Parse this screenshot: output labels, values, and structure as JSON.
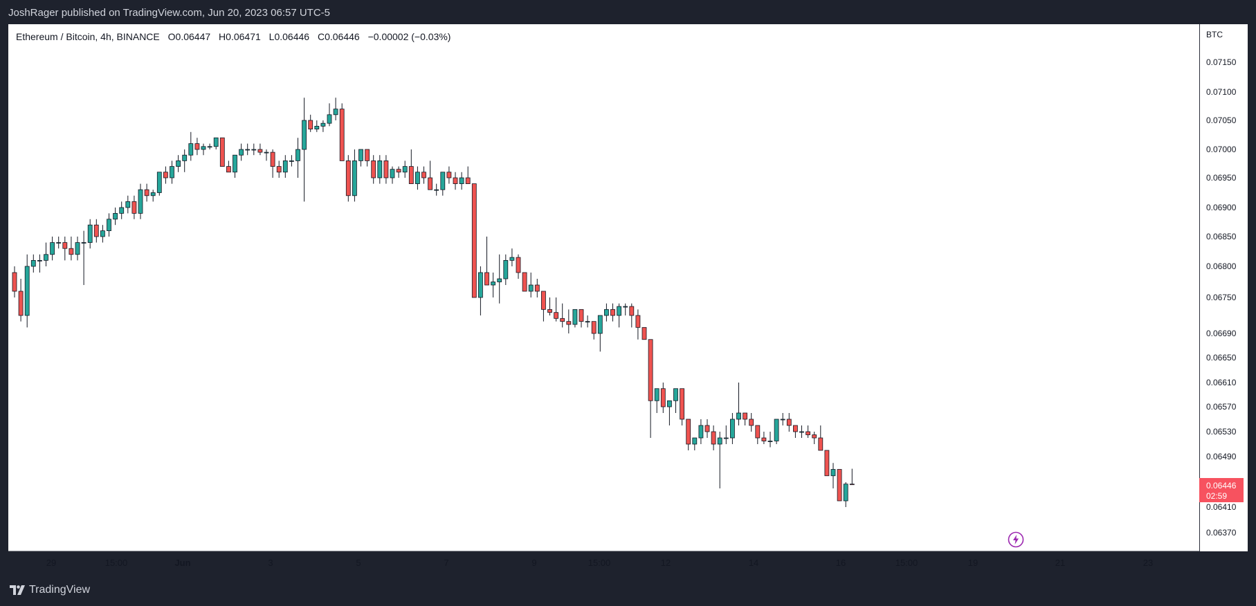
{
  "header": {
    "publisher": "JoshRager published on TradingView.com, Jun 20, 2023 06:57 UTC-5"
  },
  "legend": {
    "symbol": "Ethereum / Bitcoin, 4h, BINANCE",
    "open_label": "O",
    "open": "0.06447",
    "high_label": "H",
    "high": "0.06471",
    "low_label": "L",
    "low": "0.06446",
    "close_label": "C",
    "close": "0.06446",
    "change": "−0.00002 (−0.03%)"
  },
  "price_axis": {
    "currency": "BTC",
    "current_price": "0.06446",
    "countdown": "02:59"
  },
  "footer": {
    "brand": "TradingView"
  },
  "colors": {
    "up": "#26a69a",
    "down": "#ef5350",
    "current": "#f7525f",
    "badge": "#9c27b0"
  },
  "icons": {
    "logo": "tradingview-logo-icon",
    "flash": "lightning-icon"
  },
  "chart_data": {
    "type": "candlestick",
    "timeframe": "4h",
    "y_ticks": [
      0.0715,
      0.071,
      0.0705,
      0.07,
      0.0695,
      0.069,
      0.0685,
      0.068,
      0.0675,
      0.0669,
      0.0665,
      0.0661,
      0.0657,
      0.0653,
      0.0649,
      0.0645,
      0.0641,
      0.0637
    ],
    "y_tick_labels": [
      "0.07150",
      "0.07100",
      "0.07050",
      "0.07000",
      "0.06950",
      "0.06900",
      "0.06850",
      "0.06800",
      "0.06750",
      "0.06690",
      "0.06650",
      "0.06610",
      "0.06570",
      "0.06530",
      "0.06490",
      "",
      "0.06410",
      "0.06370"
    ],
    "x_tick_labels": [
      {
        "label": "29",
        "bold": false
      },
      {
        "label": "15:00",
        "bold": false
      },
      {
        "label": "Jun",
        "bold": true
      },
      {
        "label": "3",
        "bold": false
      },
      {
        "label": "5",
        "bold": false
      },
      {
        "label": "7",
        "bold": false
      },
      {
        "label": "9",
        "bold": false
      },
      {
        "label": "15:00",
        "bold": false
      },
      {
        "label": "12",
        "bold": false
      },
      {
        "label": "14",
        "bold": false
      },
      {
        "label": "16",
        "bold": false
      },
      {
        "label": "15:00",
        "bold": false
      },
      {
        "label": "19",
        "bold": false
      },
      {
        "label": "21",
        "bold": false
      },
      {
        "label": "23",
        "bold": false
      }
    ],
    "candles": [
      [
        0.0679,
        0.068,
        0.0675,
        0.0676
      ],
      [
        0.0676,
        0.0678,
        0.0671,
        0.0672
      ],
      [
        0.0672,
        0.0682,
        0.067,
        0.068
      ],
      [
        0.068,
        0.0682,
        0.0679,
        0.0681
      ],
      [
        0.0681,
        0.0682,
        0.0679,
        0.0681
      ],
      [
        0.0681,
        0.0684,
        0.068,
        0.0682
      ],
      [
        0.0682,
        0.0685,
        0.0681,
        0.0684
      ],
      [
        0.0684,
        0.0685,
        0.0683,
        0.0684
      ],
      [
        0.0684,
        0.0685,
        0.0681,
        0.0683
      ],
      [
        0.0683,
        0.0685,
        0.0681,
        0.0682
      ],
      [
        0.0682,
        0.0685,
        0.0681,
        0.0684
      ],
      [
        0.0684,
        0.0686,
        0.0677,
        0.0684
      ],
      [
        0.0684,
        0.0688,
        0.0683,
        0.0687
      ],
      [
        0.0687,
        0.0688,
        0.0684,
        0.0685
      ],
      [
        0.0685,
        0.0687,
        0.0684,
        0.0686
      ],
      [
        0.0686,
        0.0689,
        0.0685,
        0.0688
      ],
      [
        0.0688,
        0.069,
        0.0687,
        0.0689
      ],
      [
        0.0689,
        0.0691,
        0.0688,
        0.069
      ],
      [
        0.069,
        0.0692,
        0.0689,
        0.0691
      ],
      [
        0.0691,
        0.0692,
        0.0688,
        0.0689
      ],
      [
        0.0689,
        0.0694,
        0.0688,
        0.0693
      ],
      [
        0.0693,
        0.0694,
        0.0691,
        0.0692
      ],
      [
        0.0692,
        0.0693,
        0.0691,
        0.06925
      ],
      [
        0.06925,
        0.0696,
        0.0692,
        0.0696
      ],
      [
        0.0696,
        0.0697,
        0.0694,
        0.0695
      ],
      [
        0.0695,
        0.0698,
        0.0694,
        0.0697
      ],
      [
        0.0697,
        0.0699,
        0.0696,
        0.0698
      ],
      [
        0.0698,
        0.07,
        0.0696,
        0.0699
      ],
      [
        0.0699,
        0.0703,
        0.0698,
        0.0701
      ],
      [
        0.0701,
        0.0702,
        0.0699,
        0.07
      ],
      [
        0.07,
        0.0701,
        0.0699,
        0.07005
      ],
      [
        0.07005,
        0.0701,
        0.07,
        0.07005
      ],
      [
        0.07005,
        0.0702,
        0.07,
        0.0702
      ],
      [
        0.0702,
        0.0702,
        0.0697,
        0.0697
      ],
      [
        0.0697,
        0.0698,
        0.0696,
        0.0696
      ],
      [
        0.0696,
        0.0699,
        0.0695,
        0.0699
      ],
      [
        0.0699,
        0.0701,
        0.0698,
        0.07
      ],
      [
        0.07,
        0.0701,
        0.0699,
        0.07
      ],
      [
        0.07,
        0.0701,
        0.0699,
        0.07
      ],
      [
        0.07,
        0.0701,
        0.0699,
        0.06995
      ],
      [
        0.06995,
        0.07,
        0.0698,
        0.06995
      ],
      [
        0.06995,
        0.07,
        0.0695,
        0.0697
      ],
      [
        0.0697,
        0.0698,
        0.0695,
        0.0696
      ],
      [
        0.0696,
        0.0699,
        0.0695,
        0.0698
      ],
      [
        0.0698,
        0.0699,
        0.0697,
        0.0698
      ],
      [
        0.0698,
        0.0702,
        0.0695,
        0.07
      ],
      [
        0.07,
        0.0709,
        0.0691,
        0.0705
      ],
      [
        0.0705,
        0.0706,
        0.0703,
        0.07035
      ],
      [
        0.07035,
        0.0705,
        0.0703,
        0.0704
      ],
      [
        0.0704,
        0.0705,
        0.0703,
        0.07045
      ],
      [
        0.07045,
        0.0708,
        0.0704,
        0.0706
      ],
      [
        0.0706,
        0.0709,
        0.0705,
        0.0707
      ],
      [
        0.0707,
        0.0708,
        0.0698,
        0.0698
      ],
      [
        0.0698,
        0.0699,
        0.0691,
        0.0692
      ],
      [
        0.0692,
        0.07,
        0.0691,
        0.0698
      ],
      [
        0.0698,
        0.07,
        0.0697,
        0.07
      ],
      [
        0.07,
        0.07,
        0.0697,
        0.0698
      ],
      [
        0.0698,
        0.0699,
        0.0694,
        0.0695
      ],
      [
        0.0695,
        0.0699,
        0.0694,
        0.0698
      ],
      [
        0.0698,
        0.0699,
        0.0694,
        0.0695
      ],
      [
        0.0695,
        0.0697,
        0.0694,
        0.06965
      ],
      [
        0.06965,
        0.0697,
        0.0695,
        0.0696
      ],
      [
        0.0696,
        0.0698,
        0.0695,
        0.0697
      ],
      [
        0.0697,
        0.07,
        0.0694,
        0.0694
      ],
      [
        0.0694,
        0.0697,
        0.0693,
        0.0696
      ],
      [
        0.0696,
        0.0697,
        0.0694,
        0.0695
      ],
      [
        0.0695,
        0.0698,
        0.0693,
        0.0693
      ],
      [
        0.0693,
        0.0694,
        0.0692,
        0.0693
      ],
      [
        0.0693,
        0.0696,
        0.0692,
        0.0696
      ],
      [
        0.0696,
        0.0697,
        0.0694,
        0.0695
      ],
      [
        0.0695,
        0.0696,
        0.0693,
        0.0694
      ],
      [
        0.0694,
        0.0696,
        0.0693,
        0.0695
      ],
      [
        0.0695,
        0.0697,
        0.0694,
        0.0694
      ],
      [
        0.0694,
        0.0694,
        0.0675,
        0.0675
      ],
      [
        0.0675,
        0.068,
        0.0672,
        0.0679
      ],
      [
        0.0679,
        0.0685,
        0.0677,
        0.0677
      ],
      [
        0.0677,
        0.0679,
        0.0675,
        0.06775
      ],
      [
        0.06775,
        0.0682,
        0.0674,
        0.0678
      ],
      [
        0.0678,
        0.0682,
        0.0677,
        0.0681
      ],
      [
        0.0681,
        0.0683,
        0.068,
        0.06815
      ],
      [
        0.06815,
        0.0682,
        0.0678,
        0.0679
      ],
      [
        0.0679,
        0.0679,
        0.0676,
        0.0676
      ],
      [
        0.0676,
        0.0679,
        0.0675,
        0.0677
      ],
      [
        0.0677,
        0.0678,
        0.0675,
        0.0676
      ],
      [
        0.0676,
        0.0676,
        0.0671,
        0.0673
      ],
      [
        0.0673,
        0.0675,
        0.0672,
        0.06725
      ],
      [
        0.06725,
        0.0675,
        0.0671,
        0.06715
      ],
      [
        0.06715,
        0.0674,
        0.067,
        0.0671
      ],
      [
        0.0671,
        0.0673,
        0.0669,
        0.06705
      ],
      [
        0.06705,
        0.0673,
        0.067,
        0.0673
      ],
      [
        0.0673,
        0.0673,
        0.067,
        0.0671
      ],
      [
        0.0671,
        0.0672,
        0.067,
        0.0671
      ],
      [
        0.0671,
        0.0671,
        0.0668,
        0.0669
      ],
      [
        0.0669,
        0.0672,
        0.0666,
        0.0672
      ],
      [
        0.0672,
        0.0674,
        0.0671,
        0.0673
      ],
      [
        0.0673,
        0.0674,
        0.0671,
        0.0672
      ],
      [
        0.0672,
        0.0674,
        0.067,
        0.06735
      ],
      [
        0.06735,
        0.0674,
        0.0672,
        0.06735
      ],
      [
        0.06735,
        0.0674,
        0.067,
        0.0672
      ],
      [
        0.0672,
        0.0673,
        0.0668,
        0.067
      ],
      [
        0.067,
        0.067,
        0.0668,
        0.0668
      ],
      [
        0.0668,
        0.0668,
        0.0652,
        0.0658
      ],
      [
        0.0658,
        0.066,
        0.0656,
        0.066
      ],
      [
        0.066,
        0.0661,
        0.0656,
        0.0657
      ],
      [
        0.0657,
        0.0658,
        0.0654,
        0.0658
      ],
      [
        0.0658,
        0.066,
        0.0656,
        0.066
      ],
      [
        0.066,
        0.066,
        0.0654,
        0.0655
      ],
      [
        0.0655,
        0.0655,
        0.065,
        0.0651
      ],
      [
        0.0651,
        0.0652,
        0.065,
        0.0652
      ],
      [
        0.0652,
        0.0655,
        0.0651,
        0.0654
      ],
      [
        0.0654,
        0.0655,
        0.0652,
        0.0653
      ],
      [
        0.0653,
        0.0654,
        0.065,
        0.0651
      ],
      [
        0.0651,
        0.0653,
        0.0644,
        0.0652
      ],
      [
        0.0652,
        0.0654,
        0.0651,
        0.0652
      ],
      [
        0.0652,
        0.0656,
        0.0651,
        0.0655
      ],
      [
        0.0655,
        0.0661,
        0.0654,
        0.0656
      ],
      [
        0.0656,
        0.0656,
        0.0654,
        0.0655
      ],
      [
        0.0655,
        0.0656,
        0.0653,
        0.0654
      ],
      [
        0.0654,
        0.0654,
        0.0651,
        0.0652
      ],
      [
        0.0652,
        0.0653,
        0.0651,
        0.06515
      ],
      [
        0.06515,
        0.0653,
        0.06505,
        0.06515
      ],
      [
        0.06515,
        0.0655,
        0.0651,
        0.0655
      ],
      [
        0.0655,
        0.0656,
        0.0654,
        0.0655
      ],
      [
        0.0655,
        0.0656,
        0.0653,
        0.0654
      ],
      [
        0.0654,
        0.0654,
        0.0652,
        0.0653
      ],
      [
        0.0653,
        0.0654,
        0.0652,
        0.0653
      ],
      [
        0.0653,
        0.0654,
        0.0652,
        0.06525
      ],
      [
        0.06525,
        0.0653,
        0.0651,
        0.0652
      ],
      [
        0.0652,
        0.0654,
        0.065,
        0.065
      ],
      [
        0.065,
        0.065,
        0.0646,
        0.0646
      ],
      [
        0.0646,
        0.0648,
        0.0644,
        0.0647
      ],
      [
        0.0647,
        0.0647,
        0.0642,
        0.0642
      ],
      [
        0.0642,
        0.0645,
        0.0641,
        0.06447
      ],
      [
        0.06447,
        0.06471,
        0.06446,
        0.06446
      ]
    ]
  }
}
